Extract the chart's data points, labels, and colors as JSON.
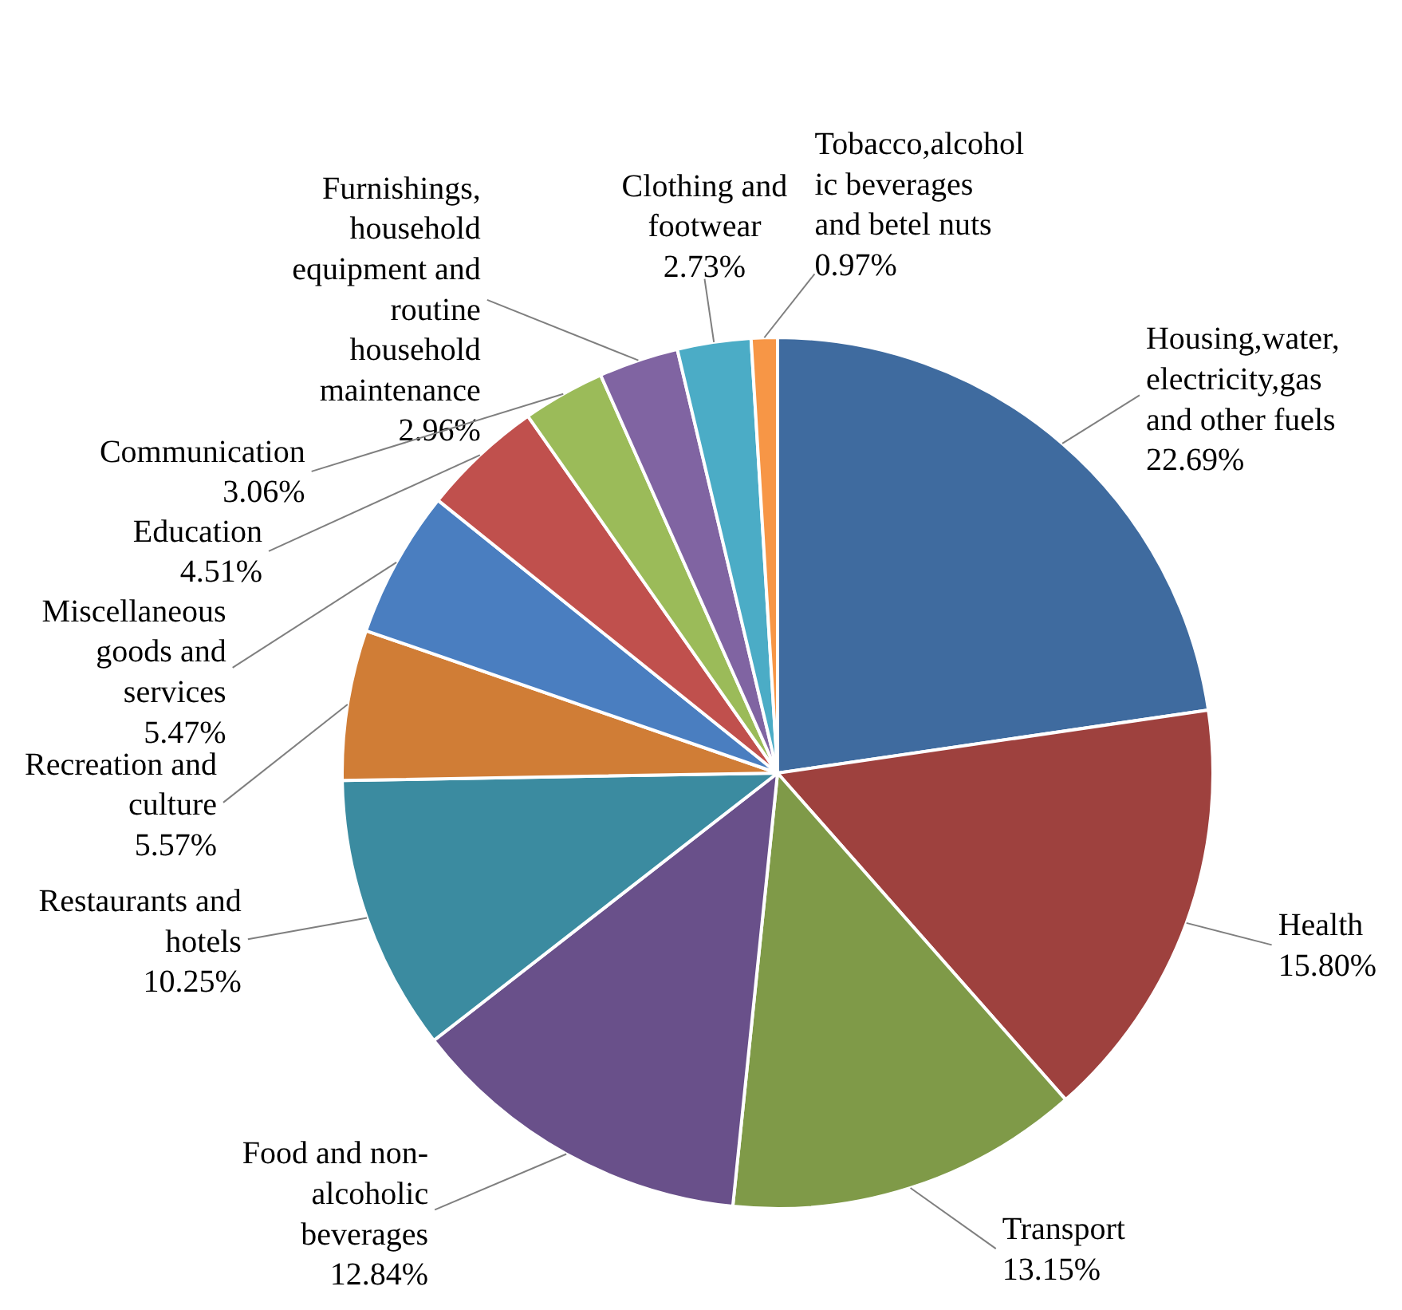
{
  "chart_data": {
    "type": "pie",
    "categories": [
      "Housing,water, electricity,gas and other fuels",
      "Health",
      "Transport",
      "Food and non-alcoholic beverages",
      "Restaurants and hotels",
      "Recreation and culture",
      "Miscellaneous goods and services",
      "Education",
      "Communication",
      "Furnishings, household equipment and routine household maintenance",
      "Clothing and footwear",
      "Tobacco,alcoholic beverages and betel nuts"
    ],
    "values": [
      22.69,
      15.8,
      13.15,
      12.84,
      10.25,
      5.57,
      5.47,
      4.51,
      3.06,
      2.96,
      2.73,
      0.97
    ],
    "value_labels": [
      "22.69%",
      "15.80%",
      "13.15%",
      "12.84%",
      "10.25%",
      "5.57%",
      "5.47%",
      "4.51%",
      "3.06%",
      "2.96%",
      "2.73%",
      "0.97%"
    ],
    "colors": [
      "#3f6b9f",
      "#9e413e",
      "#7f9a48",
      "#69508a",
      "#3b8ba0",
      "#d07d36",
      "#4a7ec0",
      "#c0504d",
      "#9bbb59",
      "#8064a2",
      "#4bacc6",
      "#f79646"
    ]
  }
}
